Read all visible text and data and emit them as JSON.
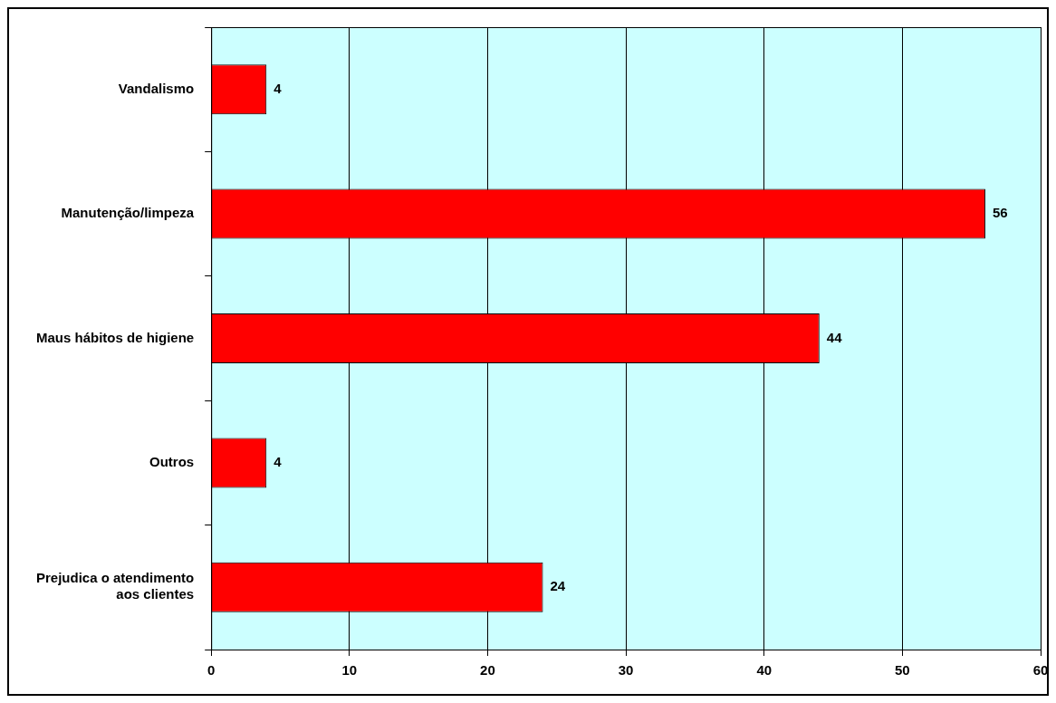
{
  "chart_data": {
    "type": "bar",
    "orientation": "horizontal",
    "categories": [
      "Vandalismo",
      "Manutenção/limpeza",
      "Maus hábitos de higiene",
      "Outros",
      "Prejudica o atendimento aos clientes"
    ],
    "values": [
      4,
      56,
      44,
      4,
      24
    ],
    "color": "#ff0000",
    "xlim": [
      0,
      60
    ],
    "xticks": [
      0,
      10,
      20,
      30,
      40,
      50,
      60
    ],
    "grid": "x",
    "data_labels": true,
    "legend": false
  }
}
